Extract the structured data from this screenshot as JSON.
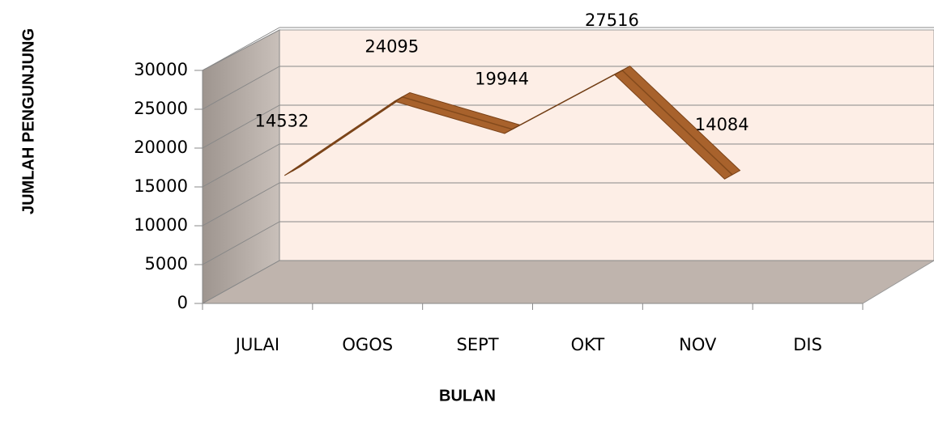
{
  "chart_data": {
    "type": "line3d",
    "x_label": "BULAN",
    "y_label": "JUMLAH PENGUNJUNG",
    "categories": [
      "JULAI",
      "OGOS",
      "SEPT",
      "OKT",
      "NOV",
      "DIS"
    ],
    "series": [
      {
        "name": "JUMLAH PENGUNJUNG",
        "color": "#a8622c",
        "values": [
          14532,
          24095,
          19944,
          27516,
          14084,
          null
        ]
      }
    ],
    "ylim": [
      0,
      30000
    ],
    "yticks": [
      0,
      5000,
      10000,
      15000,
      20000,
      25000,
      30000
    ],
    "grid": true
  }
}
